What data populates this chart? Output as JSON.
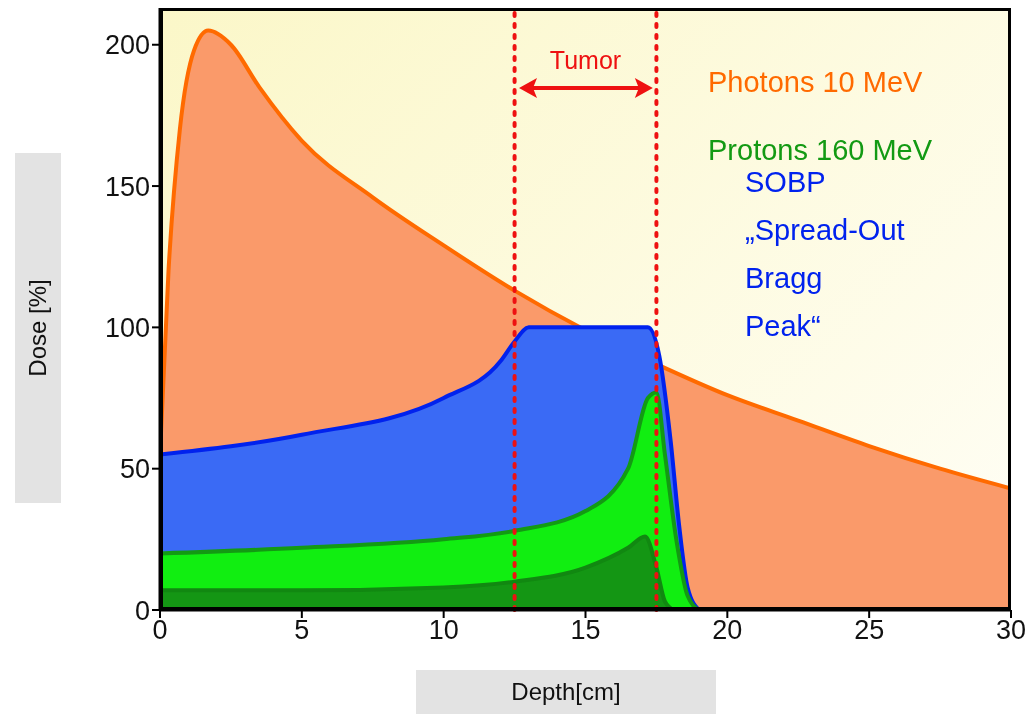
{
  "chart_data": {
    "type": "area",
    "xlabel": "Depth[cm]",
    "ylabel": "Dose [%]",
    "xlim": [
      0,
      30
    ],
    "ylim": [
      0,
      213
    ],
    "xticks": [
      0,
      5,
      10,
      15,
      20,
      25,
      30
    ],
    "yticks": [
      0,
      50,
      100,
      150,
      200
    ],
    "series": [
      {
        "name": "Photons 10 MeV",
        "color": "#ff6a00",
        "x": [
          0,
          0.3,
          0.7,
          1.2,
          1.7,
          2.5,
          3.5,
          5,
          7.5,
          10,
          12.5,
          15,
          17.5,
          20,
          22.5,
          25,
          27.5,
          30
        ],
        "values": [
          55,
          120,
          170,
          198,
          205,
          200,
          185,
          166,
          146,
          129,
          113,
          99,
          87,
          76,
          67,
          58,
          50,
          43
        ]
      },
      {
        "name": "SOBP „Spread-Out Bragg Peak“",
        "color": "#0022ee",
        "x": [
          0,
          5,
          10,
          12,
          12.5,
          13,
          15,
          17.2,
          17.6,
          18,
          18.3,
          18.6,
          19
        ],
        "values": [
          55,
          62,
          75,
          88,
          95,
          100,
          100,
          100,
          90,
          60,
          30,
          8,
          0
        ]
      },
      {
        "name": "Protons 160 MeV",
        "color": "#139a13",
        "x": [
          0,
          5,
          10,
          12.5,
          15,
          16.5,
          17.2,
          17.5,
          17.8,
          18.2,
          18.6,
          19
        ],
        "values": [
          20,
          22,
          25,
          28,
          35,
          50,
          75,
          77,
          55,
          25,
          5,
          0
        ]
      },
      {
        "color": "#118811",
        "x": [
          0,
          5,
          10,
          12.5,
          15,
          16.5,
          17.1,
          17.5,
          17.8,
          18.1
        ],
        "values": [
          7,
          7,
          8,
          10,
          15,
          22,
          26,
          15,
          3,
          0
        ]
      }
    ],
    "ref_lines": [
      {
        "axis": "x",
        "value": 12.5,
        "color": "#ee1111",
        "line_style": "dotted"
      },
      {
        "axis": "x",
        "value": 17.5,
        "color": "#ee1111",
        "line_style": "dotted"
      }
    ],
    "annotations": [
      "Tumor"
    ]
  }
}
